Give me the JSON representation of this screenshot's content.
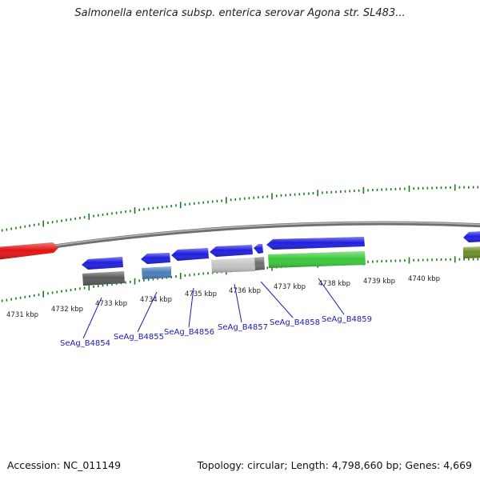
{
  "title": "Salmonella enterica subsp. enterica serovar Agona str. SL483...",
  "footer": {
    "accession": "Accession: NC_011149",
    "info": "Topology: circular; Length: 4,798,660 bp; Genes: 4,669"
  },
  "scale": {
    "ticks": [
      "4731 kbp",
      "4732 kbp",
      "4733 kbp",
      "4734 kbp",
      "4735 kbp",
      "4736 kbp",
      "4737 kbp",
      "4738 kbp",
      "4739 kbp",
      "4740 kbp"
    ]
  },
  "gene_labels": [
    "SeAg_B4854",
    "SeAg_B4855",
    "SeAg_B4856",
    "SeAg_B4857",
    "SeAg_B4858",
    "SeAg_B4859"
  ],
  "colors": {
    "tick": "#1e7a1e",
    "backbone": "#8a8a8a",
    "gene_label": "#1a1ab4",
    "leader": "#1a1ab4",
    "forward_red": "#e11414",
    "blue": "#1f1fe0",
    "dark_gray": "#5a5a5a",
    "steel_blue": "#4a7fb8",
    "light_gray": "#bdbdbd",
    "green": "#3cc93c",
    "olive": "#6b8e23"
  }
}
